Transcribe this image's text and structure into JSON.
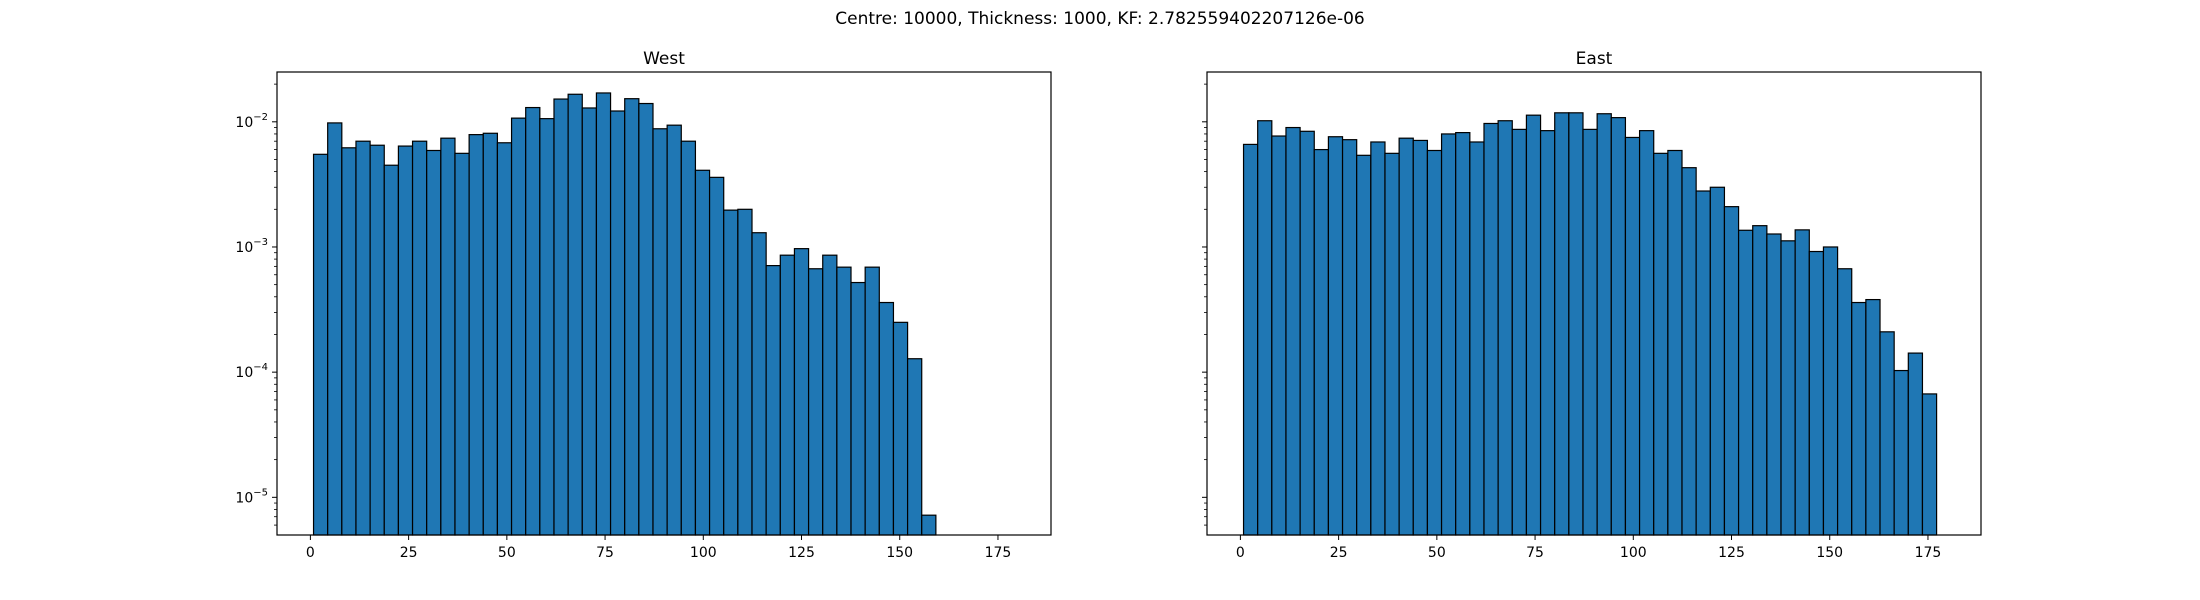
{
  "chart_data": {
    "type": "bar",
    "suptitle": "Centre: 10000, Thickness: 1000, KF: 2.782559402207126e-06",
    "y_scale": "log",
    "ylim": [
      5e-06,
      0.025
    ],
    "xlim": [
      -8.5,
      188.5
    ],
    "bin_width": 3.6,
    "bin_start": 0.8,
    "edgecolor": "#000000",
    "facecolor": "#1f77b4",
    "x_ticks": [
      0,
      25,
      50,
      75,
      100,
      125,
      150,
      175
    ],
    "x_tick_labels": [
      "0",
      "25",
      "50",
      "75",
      "100",
      "125",
      "150",
      "175"
    ],
    "y_ticks": [
      1e-05,
      0.0001,
      0.001,
      0.01
    ],
    "y_tick_labels": [
      {
        "base": "10",
        "exp": "−5"
      },
      {
        "base": "10",
        "exp": "−4"
      },
      {
        "base": "10",
        "exp": "−3"
      },
      {
        "base": "10",
        "exp": "−2"
      }
    ],
    "panels": [
      {
        "title": "West",
        "show_y_labels": true,
        "values": [
          0.0055,
          0.0098,
          0.0062,
          0.007,
          0.0065,
          0.0045,
          0.0064,
          0.007,
          0.0059,
          0.0074,
          0.0056,
          0.0079,
          0.0081,
          0.0068,
          0.0107,
          0.013,
          0.0106,
          0.0152,
          0.0166,
          0.0129,
          0.017,
          0.0122,
          0.0153,
          0.014,
          0.0088,
          0.0094,
          0.007,
          0.0041,
          0.0036,
          0.00197,
          0.002,
          0.0013,
          0.00071,
          0.00086,
          0.00097,
          0.00067,
          0.00086,
          0.00069,
          0.00052,
          0.00069,
          0.00036,
          0.00025,
          0.000128,
          7.2e-06
        ]
      },
      {
        "title": "East",
        "show_y_labels": false,
        "values": [
          0.0066,
          0.0102,
          0.0077,
          0.009,
          0.0084,
          0.006,
          0.0076,
          0.0072,
          0.0054,
          0.0069,
          0.0056,
          0.0074,
          0.0071,
          0.0059,
          0.008,
          0.0082,
          0.0069,
          0.0097,
          0.0102,
          0.0087,
          0.0113,
          0.0085,
          0.0118,
          0.0118,
          0.0087,
          0.0116,
          0.0108,
          0.0075,
          0.0085,
          0.0056,
          0.0059,
          0.0043,
          0.0028,
          0.003,
          0.0021,
          0.00136,
          0.00148,
          0.00127,
          0.00112,
          0.00137,
          0.00092,
          0.001,
          0.00067,
          0.00036,
          0.00038,
          0.00021,
          0.000103,
          0.000142,
          6.7e-05
        ]
      }
    ]
  }
}
